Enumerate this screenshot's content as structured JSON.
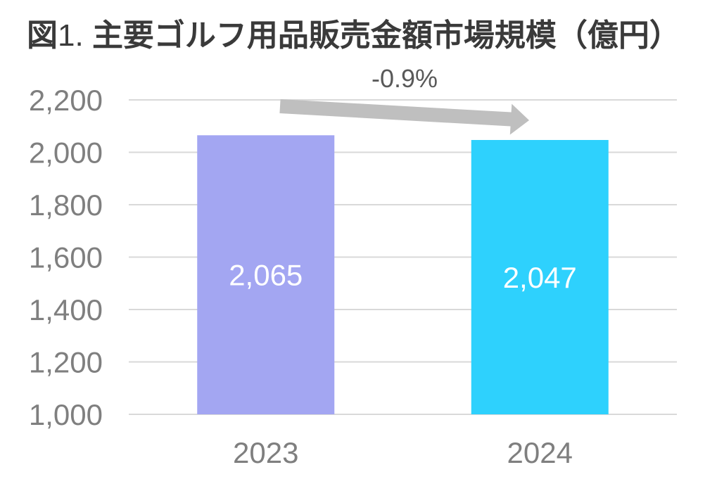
{
  "title": {
    "prefix": "図",
    "number": "1.",
    "text": "主要ゴルフ用品販売金額市場規模（億円）"
  },
  "chart_data": {
    "type": "bar",
    "categories": [
      "2023",
      "2024"
    ],
    "values": [
      2065,
      2047
    ],
    "data_labels": [
      "2,065",
      "2,047"
    ],
    "bar_colors": [
      "#a3a6f2",
      "#2ed1fd"
    ],
    "ylim": [
      1000,
      2200
    ],
    "yticks": [
      1000,
      1200,
      1400,
      1600,
      1800,
      2000,
      2200
    ],
    "ytick_labels": [
      "1,000",
      "1,200",
      "1,400",
      "1,600",
      "1,800",
      "2,000",
      "2,200"
    ],
    "grid": true,
    "annotation": {
      "text": "-0.9%",
      "from": "2023",
      "to": "2024"
    }
  },
  "colors": {
    "grid": "#d9d9d9",
    "axis_text": "#7f7f7f",
    "arrow": "#bfbfbf",
    "title": "#3a3a3a"
  }
}
